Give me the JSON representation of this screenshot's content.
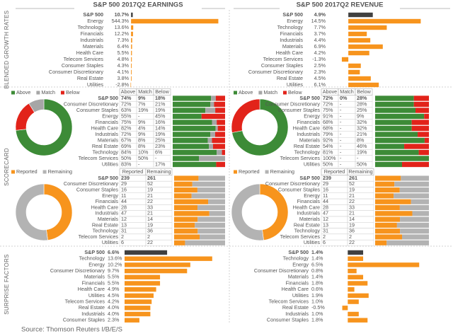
{
  "headers": [
    "S&P 500 2017Q2 EARNINGS",
    "S&P 500 2017Q2 REVENUE"
  ],
  "sections": [
    "BLENDED GROWTH RATES",
    "SCORECARD",
    "SURPRISE FACTORS"
  ],
  "source": "Source: Thomson Reuters I/B/E/S",
  "chart_data": [
    {
      "type": "hbar",
      "categories": [
        "S&P 500",
        "Energy",
        "Technology",
        "Financials",
        "Industrials",
        "Materials",
        "Health Care",
        "Telecom Services",
        "Consumer Staples",
        "Consumer Discretionary",
        "Real Estate",
        "Utilities"
      ],
      "values": [
        10.7,
        544.3,
        13.6,
        12.2,
        7.3,
        6.4,
        5.5,
        4.8,
        4.3,
        4.1,
        3.8,
        -2.8
      ],
      "value_labels": [
        "10.7%",
        "544.3%",
        "13.6%",
        "12.2%",
        "7.3%",
        "6.4%",
        "5.5%",
        "4.8%",
        "4.3%",
        "4.1%",
        "3.8%",
        "-2.8%"
      ],
      "color": "#f7941d",
      "total_color": "#404040",
      "label_color": "#4f9a2f",
      "negative_color": "#e2231a",
      "xlim": [
        -5,
        560
      ]
    },
    {
      "type": "hbar",
      "categories": [
        "S&P 500",
        "Energy",
        "Technology",
        "Financials",
        "Industrials",
        "Materials",
        "Health Care",
        "Telecom Services",
        "Consumer Staples",
        "Consumer Discretionary",
        "Real Estate",
        "Utilities"
      ],
      "values": [
        4.9,
        14.5,
        7.7,
        3.7,
        4.4,
        6.9,
        4.2,
        -1.3,
        2.5,
        2.3,
        4.5,
        6.1
      ],
      "value_labels": [
        "4.9%",
        "14.5%",
        "7.7%",
        "3.7%",
        "4.4%",
        "6.9%",
        "4.2%",
        "-1.3%",
        "2.5%",
        "2.3%",
        "4.5%",
        "6.1%"
      ],
      "color": "#f7941d",
      "total_color": "#404040",
      "label_color": "#4f9a2f",
      "negative_color": "#e2231a",
      "xlim": [
        -2,
        16
      ]
    },
    {
      "type": "scorecard",
      "categories": [
        "S&P 500",
        "Consumer Discretionary",
        "Consumer Staples",
        "Energy",
        "Financials",
        "Health Care",
        "Industrials",
        "Materials",
        "Real Estate",
        "Technology",
        "Telecom Services",
        "Utilities"
      ],
      "series": [
        {
          "name": "Above",
          "color": "#3d8b37",
          "values": [
            74,
            72,
            63,
            55,
            75,
            82,
            72,
            67,
            69,
            84,
            50,
            83
          ],
          "value_labels": [
            "74%",
            "72%",
            "63%",
            "55%",
            "75%",
            "82%",
            "72%",
            "67%",
            "69%",
            "84%",
            "50%",
            "83%"
          ]
        },
        {
          "name": "Match",
          "color": "#a6a6a6",
          "values": [
            9,
            7,
            19,
            0,
            9,
            4,
            9,
            8,
            8,
            10,
            50,
            0
          ],
          "value_labels": [
            "9%",
            "7%",
            "19%",
            "-",
            "9%",
            "4%",
            "9%",
            "8%",
            "8%",
            "10%",
            "50%",
            "-"
          ]
        },
        {
          "name": "Below",
          "color": "#e2231a",
          "values": [
            18,
            21,
            19,
            45,
            16,
            14,
            19,
            25,
            23,
            6,
            0,
            17
          ],
          "value_labels": [
            "18%",
            "21%",
            "19%",
            "45%",
            "16%",
            "14%",
            "19%",
            "25%",
            "23%",
            "6%",
            "-",
            "17%"
          ]
        }
      ]
    },
    {
      "type": "scorecard",
      "categories": [
        "S&P 500",
        "Consumer Discretionary",
        "Consumer Staples",
        "Energy",
        "Financials",
        "Health Care",
        "Industrials",
        "Materials",
        "Real Estate",
        "Technology",
        "Telecom Services",
        "Utilities"
      ],
      "series": [
        {
          "name": "Above",
          "color": "#3d8b37",
          "values": [
            72,
            72,
            75,
            91,
            68,
            68,
            79,
            92,
            54,
            81,
            100,
            50
          ],
          "value_labels": [
            "72%",
            "72%",
            "75%",
            "91%",
            "68%",
            "68%",
            "79%",
            "92%",
            "54%",
            "81%",
            "100%",
            "50%"
          ]
        },
        {
          "name": "Match",
          "color": "#a6a6a6",
          "values": [
            0,
            0,
            0,
            0,
            0,
            0,
            0,
            0,
            0,
            0,
            0,
            0
          ],
          "value_labels": [
            "0%",
            "-",
            "-",
            "-",
            "-",
            "-",
            "-",
            "-",
            "-",
            "-",
            "-",
            "-"
          ]
        },
        {
          "name": "Below",
          "color": "#e2231a",
          "values": [
            28,
            28,
            25,
            9,
            32,
            32,
            21,
            8,
            46,
            19,
            0,
            50
          ],
          "value_labels": [
            "28%",
            "28%",
            "25%",
            "9%",
            "32%",
            "32%",
            "21%",
            "8%",
            "46%",
            "19%",
            "-",
            "50%"
          ]
        }
      ]
    },
    {
      "type": "reported",
      "categories": [
        "S&P 500",
        "Consumer Discretionary",
        "Consumer Staples",
        "Energy",
        "Financials",
        "Health Care",
        "Industrials",
        "Materials",
        "Real Estate",
        "Technology",
        "Telecom Services",
        "Utilities"
      ],
      "series": [
        {
          "name": "Reported",
          "color": "#f7941d",
          "values": [
            239,
            29,
            16,
            11,
            44,
            28,
            47,
            12,
            13,
            31,
            2,
            6
          ]
        },
        {
          "name": "Remaining",
          "color": "#b3b3b3",
          "values": [
            261,
            52,
            19,
            21,
            22,
            33,
            21,
            14,
            19,
            36,
            2,
            22
          ]
        }
      ]
    },
    {
      "type": "reported",
      "categories": [
        "S&P 500",
        "Consumer Discretionary",
        "Consumer Staples",
        "Energy",
        "Financials",
        "Health Care",
        "Industrials",
        "Materials",
        "Real Estate",
        "Technology",
        "Telecom Services",
        "Utilities"
      ],
      "series": [
        {
          "name": "Reported",
          "color": "#f7941d",
          "values": [
            239,
            29,
            16,
            11,
            44,
            28,
            47,
            12,
            13,
            31,
            2,
            6
          ]
        },
        {
          "name": "Remaining",
          "color": "#b3b3b3",
          "values": [
            261,
            52,
            19,
            21,
            22,
            33,
            21,
            14,
            19,
            36,
            2,
            22
          ]
        }
      ]
    },
    {
      "type": "hbar",
      "categories": [
        "S&P 500",
        "Technology",
        "Energy",
        "Consumer Discretionary",
        "Materials",
        "Financials",
        "Health Care",
        "Utilities",
        "Telecom Services",
        "Real Estate",
        "Industrials",
        "Consumer Staples"
      ],
      "values": [
        6.6,
        13.6,
        10.2,
        9.7,
        5.5,
        5.5,
        4.9,
        4.5,
        4.2,
        4.0,
        4.0,
        2.3
      ],
      "value_labels": [
        "6.6%",
        "13.6%",
        "10.2%",
        "9.7%",
        "5.5%",
        "5.5%",
        "4.9%",
        "4.5%",
        "4.2%",
        "4.0%",
        "4.0%",
        "2.3%"
      ],
      "color": "#f7941d",
      "total_color": "#404040",
      "label_color": "#4f9a2f",
      "negative_color": "#e2231a",
      "xlim": [
        0,
        14.5
      ]
    },
    {
      "type": "hbar",
      "categories": [
        "S&P 500",
        "Technology",
        "Energy",
        "Consumer Discretionary",
        "Materials",
        "Financials",
        "Health Care",
        "Utilities",
        "Telecom Services",
        "Real Estate",
        "Industrials",
        "Consumer Staples"
      ],
      "values": [
        1.4,
        1.4,
        6.5,
        0.8,
        1.4,
        1.8,
        0.6,
        1.9,
        1.0,
        -0.5,
        1.0,
        1.8
      ],
      "value_labels": [
        "1.4%",
        "1.4%",
        "6.5%",
        "0.8%",
        "1.4%",
        "1.8%",
        "0.6%",
        "1.9%",
        "1.0%",
        "-0.5%",
        "1.0%",
        "1.8%"
      ],
      "color": "#f7941d",
      "total_color": "#404040",
      "label_color": "#4f9a2f",
      "negative_color": "#e2231a",
      "xlim": [
        -0.6,
        7
      ]
    }
  ]
}
